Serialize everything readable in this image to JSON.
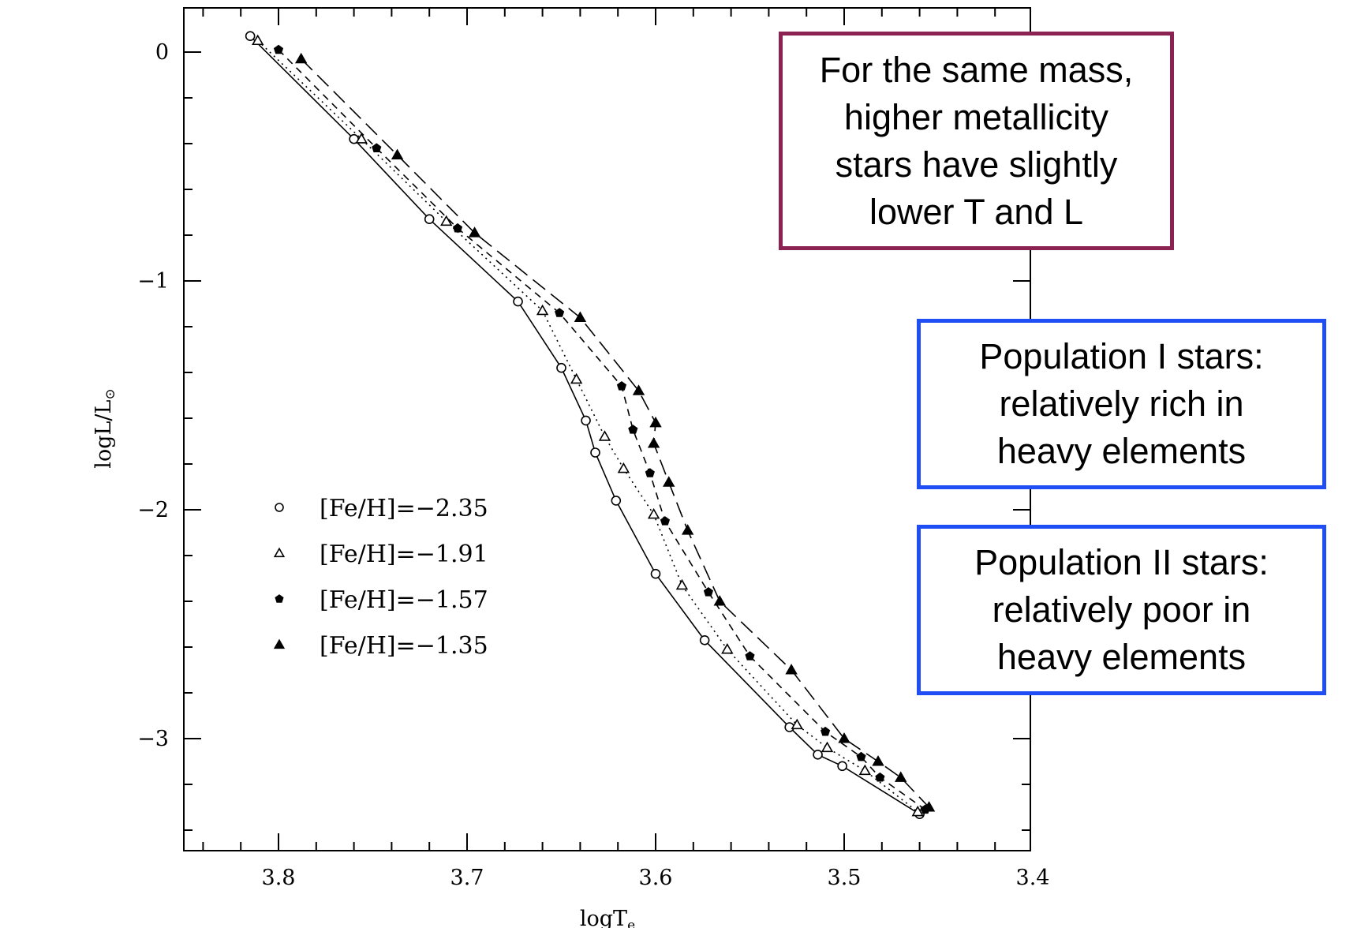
{
  "colors": {
    "axis": "#000000",
    "metallicity_box": "#8b2252",
    "population_box": "#1f4ef5"
  },
  "chart_data": {
    "type": "scatter",
    "xlabel": "logT",
    "xlabel_sub": "e",
    "ylabel": "logL/L",
    "ylabel_sub": "⊙",
    "xlim": [
      3.85,
      3.4
    ],
    "ylim": [
      -3.5,
      0.2
    ],
    "x_ticks": [
      "3.8",
      "3.7",
      "3.6",
      "3.5",
      "3.4"
    ],
    "y_ticks": [
      "0",
      "−1",
      "−2",
      "−3"
    ],
    "grid": false,
    "legend_position": "lower-left",
    "series": [
      {
        "name": "[Fe/H]=−2.35",
        "marker": "open-circle",
        "line": "solid",
        "points": [
          [
            3.815,
            0.07
          ],
          [
            3.76,
            -0.38
          ],
          [
            3.72,
            -0.73
          ],
          [
            3.673,
            -1.09
          ],
          [
            3.65,
            -1.38
          ],
          [
            3.637,
            -1.61
          ],
          [
            3.632,
            -1.75
          ],
          [
            3.621,
            -1.96
          ],
          [
            3.6,
            -2.28
          ],
          [
            3.574,
            -2.57
          ],
          [
            3.529,
            -2.95
          ],
          [
            3.514,
            -3.07
          ],
          [
            3.501,
            -3.12
          ],
          [
            3.46,
            -3.33
          ]
        ]
      },
      {
        "name": "[Fe/H]=−1.91",
        "marker": "open-triangle",
        "line": "dotted",
        "points": [
          [
            3.811,
            0.05
          ],
          [
            3.756,
            -0.38
          ],
          [
            3.711,
            -0.74
          ],
          [
            3.66,
            -1.13
          ],
          [
            3.642,
            -1.43
          ],
          [
            3.627,
            -1.68
          ],
          [
            3.617,
            -1.82
          ],
          [
            3.601,
            -2.02
          ],
          [
            3.586,
            -2.33
          ],
          [
            3.562,
            -2.61
          ],
          [
            3.525,
            -2.94
          ],
          [
            3.509,
            -3.04
          ],
          [
            3.489,
            -3.14
          ],
          [
            3.461,
            -3.32
          ]
        ]
      },
      {
        "name": "[Fe/H]=−1.57",
        "marker": "filled-pentagon",
        "line": "short-dash",
        "points": [
          [
            3.8,
            0.01
          ],
          [
            3.748,
            -0.42
          ],
          [
            3.705,
            -0.77
          ],
          [
            3.651,
            -1.14
          ],
          [
            3.618,
            -1.46
          ],
          [
            3.612,
            -1.65
          ],
          [
            3.603,
            -1.84
          ],
          [
            3.595,
            -2.05
          ],
          [
            3.572,
            -2.36
          ],
          [
            3.55,
            -2.64
          ],
          [
            3.51,
            -2.97
          ],
          [
            3.491,
            -3.08
          ],
          [
            3.481,
            -3.17
          ],
          [
            3.457,
            -3.31
          ]
        ]
      },
      {
        "name": "[Fe/H]=−1.35",
        "marker": "filled-triangle",
        "line": "long-dash",
        "points": [
          [
            3.788,
            -0.03
          ],
          [
            3.737,
            -0.45
          ],
          [
            3.696,
            -0.79
          ],
          [
            3.64,
            -1.16
          ],
          [
            3.609,
            -1.48
          ],
          [
            3.6,
            -1.62
          ],
          [
            3.601,
            -1.71
          ],
          [
            3.593,
            -1.88
          ],
          [
            3.583,
            -2.09
          ],
          [
            3.566,
            -2.4
          ],
          [
            3.528,
            -2.7
          ],
          [
            3.5,
            -3.0
          ],
          [
            3.482,
            -3.1
          ],
          [
            3.47,
            -3.17
          ],
          [
            3.455,
            -3.3
          ]
        ]
      }
    ]
  },
  "callouts": {
    "metallicity": [
      "For the same mass,",
      "higher metallicity",
      "stars have slightly",
      "lower T and L"
    ],
    "population_1": [
      "Population I stars:",
      "relatively rich in",
      "heavy elements"
    ],
    "population_2": [
      "Population II stars:",
      "relatively poor in",
      "heavy elements"
    ]
  }
}
